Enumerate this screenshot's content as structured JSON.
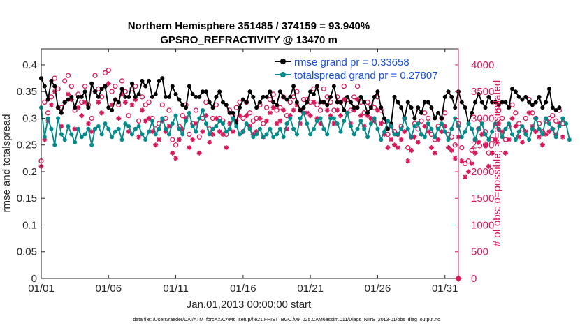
{
  "chart_data": {
    "type": "line",
    "title": "Northern Hemisphere 351485 / 374159 = 93.940%",
    "subtitle": "GPSRO_REFRACTIVITY @ 13470 m",
    "xlabel": "Jan.01,2013 00:00:00 start",
    "ylabel": "rmse and totalspread",
    "ylabel_right": "# of obs: o=possible; ∗=assimilated",
    "footnote": "data file: /Users/raeder/DAI/ATM_forcXX/CAM6_setup/f.e21.FHIST_BGC.f09_025.CAM6assim.011/Diags_NTrS_2013-01/obs_diag_output.nc",
    "x_ticks": [
      1,
      6,
      11,
      16,
      21,
      26,
      31
    ],
    "x_tick_labels": [
      "01/01",
      "01/06",
      "01/11",
      "01/16",
      "01/21",
      "01/26",
      "01/31"
    ],
    "xlim": [
      1,
      32
    ],
    "ylim": [
      0,
      0.43
    ],
    "y_ticks": [
      0,
      0.05,
      0.1,
      0.15,
      0.2,
      0.25,
      0.3,
      0.35,
      0.4
    ],
    "y_tick_labels": [
      "0",
      "0.05",
      "0.1",
      "0.15",
      "0.2",
      "0.25",
      "0.3",
      "0.35",
      "0.4"
    ],
    "ylim_right": [
      0,
      4300
    ],
    "y_ticks_right": [
      0,
      500,
      1000,
      1500,
      2000,
      2500,
      3000,
      3500,
      4000
    ],
    "y_tick_labels_right": [
      "0",
      "500",
      "1000",
      "1500",
      "2000",
      "2500",
      "3000",
      "3500",
      "4000"
    ],
    "grid": false,
    "legend_position": "top-right",
    "series": [
      {
        "name": "rmse grand pr = 0.33658",
        "axis": "left",
        "color": "#000000",
        "marker": "filled-circle",
        "x_start": 1.0,
        "x_step": 0.25,
        "values": [
          0.375,
          0.36,
          0.335,
          0.37,
          0.36,
          0.32,
          0.31,
          0.33,
          0.335,
          0.34,
          0.32,
          0.34,
          0.34,
          0.35,
          0.32,
          0.365,
          0.35,
          0.34,
          0.355,
          0.36,
          0.32,
          0.315,
          0.335,
          0.33,
          0.355,
          0.34,
          0.34,
          0.365,
          0.34,
          0.345,
          0.37,
          0.36,
          0.37,
          0.34,
          0.345,
          0.37,
          0.375,
          0.34,
          0.34,
          0.36,
          0.345,
          0.335,
          0.325,
          0.32,
          0.36,
          0.345,
          0.34,
          0.34,
          0.35,
          0.35,
          0.33,
          0.32,
          0.34,
          0.35,
          0.33,
          0.325,
          0.31,
          0.31,
          0.29,
          0.32,
          0.335,
          0.33,
          0.35,
          0.34,
          0.32,
          0.33,
          0.34,
          0.34,
          0.35,
          0.33,
          0.325,
          0.35,
          0.34,
          0.335,
          0.34,
          0.36,
          0.33,
          0.315,
          0.32,
          0.33,
          0.35,
          0.345,
          0.36,
          0.33,
          0.33,
          0.325,
          0.34,
          0.36,
          0.33,
          0.33,
          0.315,
          0.34,
          0.33,
          0.32,
          0.32,
          0.34,
          0.33,
          0.31,
          0.32,
          0.34,
          0.35,
          0.32,
          0.3,
          0.28,
          0.29,
          0.34,
          0.33,
          0.32,
          0.3,
          0.33,
          0.32,
          0.3,
          0.32,
          0.31,
          0.33,
          0.33,
          0.32,
          0.3,
          0.31,
          0.3,
          0.34,
          0.35,
          0.34,
          0.32,
          0.35,
          0.33,
          0.32,
          0.29,
          0.31,
          0.33,
          0.345,
          0.33,
          0.32,
          0.34,
          0.33,
          0.33,
          0.325,
          0.33,
          0.33,
          0.32,
          0.355,
          0.35,
          0.34,
          0.335,
          0.34,
          0.33,
          0.325,
          0.33,
          0.34,
          0.32,
          0.33,
          0.355,
          0.32,
          0.315,
          0.32
        ]
      },
      {
        "name": "totalspread grand pr = 0.27807",
        "axis": "left",
        "color": "#008b8b",
        "marker": "filled-circle",
        "x_start": 1.0,
        "x_step": 0.25,
        "values": [
          0.32,
          0.265,
          0.3,
          0.28,
          0.25,
          0.3,
          0.27,
          0.26,
          0.285,
          0.27,
          0.255,
          0.28,
          0.265,
          0.27,
          0.28,
          0.25,
          0.28,
          0.285,
          0.27,
          0.29,
          0.28,
          0.265,
          0.275,
          0.28,
          0.26,
          0.29,
          0.285,
          0.27,
          0.28,
          0.285,
          0.27,
          0.26,
          0.275,
          0.295,
          0.27,
          0.28,
          0.3,
          0.28,
          0.27,
          0.29,
          0.305,
          0.28,
          0.27,
          0.295,
          0.31,
          0.285,
          0.275,
          0.3,
          0.315,
          0.29,
          0.27,
          0.28,
          0.285,
          0.295,
          0.29,
          0.275,
          0.28,
          0.3,
          0.285,
          0.27,
          0.275,
          0.29,
          0.28,
          0.265,
          0.27,
          0.28,
          0.265,
          0.27,
          0.28,
          0.265,
          0.27,
          0.28,
          0.265,
          0.29,
          0.3,
          0.28,
          0.27,
          0.3,
          0.31,
          0.29,
          0.27,
          0.28,
          0.295,
          0.3,
          0.28,
          0.27,
          0.3,
          0.3,
          0.29,
          0.275,
          0.295,
          0.31,
          0.285,
          0.27,
          0.28,
          0.295,
          0.28,
          0.265,
          0.29,
          0.3,
          0.28,
          0.26,
          0.275,
          0.295,
          0.285,
          0.27,
          0.27,
          0.28,
          0.3,
          0.28,
          0.265,
          0.285,
          0.29,
          0.27,
          0.265,
          0.29,
          0.28,
          0.265,
          0.28,
          0.29,
          0.275,
          0.26,
          0.28,
          0.3,
          0.285,
          0.265,
          0.275,
          0.29,
          0.28,
          0.26,
          0.28,
          0.29,
          0.27,
          0.26,
          0.275,
          0.29,
          0.28,
          0.265,
          0.28,
          0.29,
          0.27,
          0.26,
          0.275,
          0.285,
          0.27,
          0.26,
          0.28,
          0.3,
          0.28,
          0.27,
          0.3,
          0.29,
          0.28,
          0.265,
          0.285,
          0.3,
          0.29,
          0.26
        ]
      },
      {
        "name": "possible",
        "axis": "right",
        "color": "#d6195b",
        "marker": "open-circle",
        "x_start": 1.0,
        "x_step": 0.25,
        "values": [
          2200,
          3300,
          3100,
          3400,
          3750,
          3550,
          3200,
          3700,
          3800,
          3600,
          3150,
          3450,
          3300,
          3600,
          3250,
          3000,
          3800,
          3550,
          3400,
          3850,
          3900,
          3500,
          3600,
          3250,
          3700,
          3500,
          3050,
          3550,
          3600,
          2950,
          3400,
          3250,
          3300,
          3000,
          2800,
          2900,
          3250,
          3000,
          3150,
          2600,
          2500,
          2850,
          3050,
          3250,
          2700,
          2900,
          3150,
          2650,
          3000,
          3300,
          2800,
          3000,
          3250,
          3000,
          2950,
          2700,
          3150,
          3050,
          3200,
          3300,
          3000,
          3300,
          3100,
          2950,
          3000,
          3250,
          2900,
          3200,
          3350,
          3450,
          3150,
          3200,
          3400,
          3050,
          3300,
          3400,
          3500,
          3150,
          3350,
          3350,
          3300,
          3550,
          3250,
          3150,
          3550,
          3400,
          3300,
          3150,
          3400,
          3300,
          3600,
          3350,
          3150,
          3400,
          3600,
          3300,
          3100,
          3300,
          3250,
          3200,
          3400,
          3150,
          2950,
          2700,
          2850,
          2750,
          2700,
          2850,
          3000,
          2450,
          2650,
          2900,
          2800,
          2950,
          3100,
          3000,
          2700,
          2600,
          2850,
          3000,
          3100,
          2700,
          2650,
          2500,
          2900,
          2450,
          2150,
          2200,
          2400,
          2600,
          2800,
          2950,
          2750,
          2350,
          2600,
          2850,
          3150,
          3000,
          2600,
          2850,
          3250,
          3100,
          2900,
          2800,
          3000,
          3350,
          3100,
          3000,
          2900,
          2750,
          2950,
          3000,
          3050,
          2950,
          3150,
          2900
        ]
      },
      {
        "name": "assimilated",
        "axis": "right",
        "color": "#d6195b",
        "marker": "asterisk",
        "x_start": 1.0,
        "x_step": 0.25,
        "values": [
          2100,
          2600,
          2950,
          3250,
          3500,
          3200,
          2850,
          3300,
          3450,
          3350,
          2800,
          3200,
          3050,
          3300,
          2900,
          2750,
          3500,
          3300,
          3100,
          3600,
          3650,
          3250,
          3350,
          3000,
          3450,
          3300,
          2750,
          3250,
          3350,
          2650,
          3150,
          2950,
          3000,
          2750,
          2500,
          2600,
          2950,
          2750,
          2850,
          2350,
          2250,
          2600,
          2800,
          3000,
          2450,
          2600,
          2900,
          2350,
          2750,
          3050,
          2550,
          2700,
          3000,
          2750,
          2700,
          2450,
          2900,
          2750,
          2950,
          3050,
          2750,
          3050,
          2850,
          2700,
          2750,
          3000,
          2650,
          2950,
          3100,
          3200,
          2900,
          2950,
          3150,
          2800,
          3050,
          3150,
          3250,
          2900,
          3100,
          3100,
          3050,
          3300,
          3000,
          2900,
          3300,
          3150,
          3050,
          2900,
          3150,
          3050,
          3350,
          3100,
          2900,
          3150,
          3350,
          3050,
          2850,
          3050,
          3000,
          2950,
          3150,
          2900,
          2700,
          2450,
          2600,
          2500,
          2450,
          2600,
          2750,
          2200,
          2400,
          2650,
          2550,
          2700,
          2850,
          2750,
          2450,
          2350,
          2600,
          2750,
          2850,
          2450,
          2400,
          2250,
          2650,
          2200,
          1900,
          2000,
          2150,
          2350,
          2550,
          2700,
          2500,
          2100,
          2350,
          2600,
          2900,
          2750,
          2350,
          2600,
          3000,
          2850,
          2650,
          2550,
          2750,
          3100,
          2850,
          2750,
          2650,
          2500,
          2700,
          2750,
          2800,
          2700,
          2900,
          2650
        ]
      }
    ]
  }
}
